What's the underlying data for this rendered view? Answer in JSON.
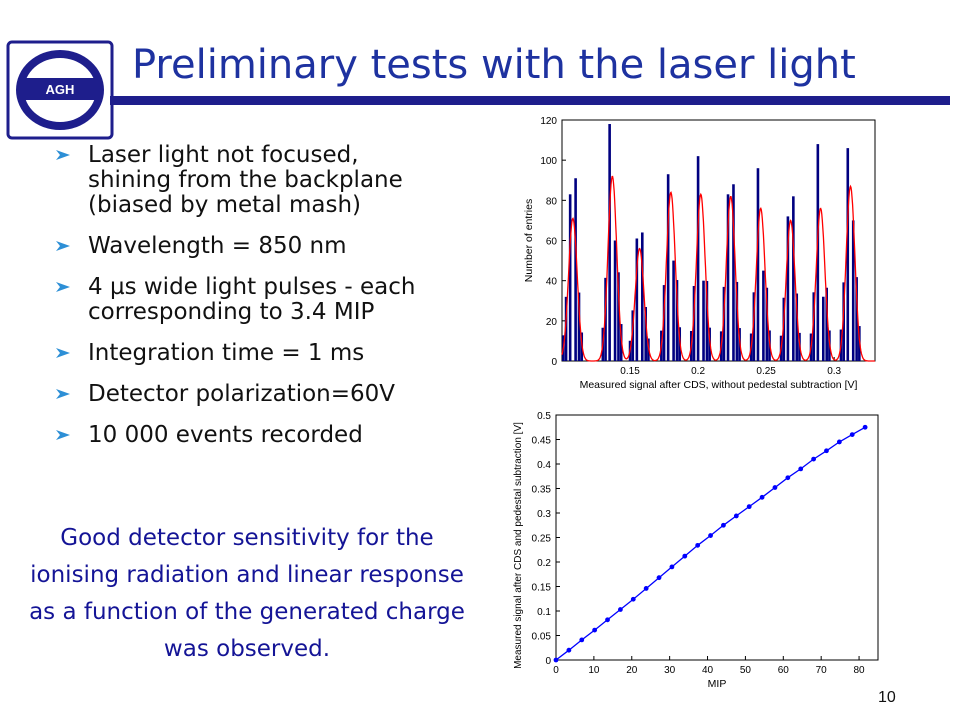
{
  "slide": {
    "title": "Preliminary tests with the laser light",
    "logo_text": "AGH",
    "page_number": "10",
    "bullets": [
      "Laser light not focused,\nshining from the backplane\n(biased by metal mash)",
      "Wavelength = 850 nm",
      "4 µs wide light pulses - each\ncorresponding to 3.4 MIP",
      "Integration time = 1 ms",
      "Detector polarization=60V",
      "10 000 events recorded"
    ],
    "conclusion": "Good detector sensitivity for the ionising radiation and linear response as a function of the generated charge was observed.",
    "colors": {
      "title": "#1e32a0",
      "accent_bar": "#1e1e8c",
      "bullet_arrow": "#2d8fd6",
      "conclusion": "#141496"
    }
  },
  "chart_data": [
    {
      "type": "bar",
      "xlabel": "Measured signal after CDS, without pedestal subtraction [V]",
      "ylabel": "Number of entries",
      "ylim": [
        0,
        120
      ],
      "xlim": [
        0.1,
        0.33
      ],
      "xticks": [
        "0.15",
        "0.2",
        "0.25",
        "0.3"
      ],
      "yticks": [
        "0",
        "20",
        "40",
        "60",
        "80",
        "100",
        "120"
      ],
      "bar_color": "#000080",
      "fit_color": "#ff0000",
      "peaks": [
        {
          "x": 0.108,
          "bins": [
            [
              0.106,
              83
            ],
            [
              0.11,
              91
            ]
          ],
          "fit_height": 71
        },
        {
          "x": 0.137,
          "bins": [
            [
              0.135,
              118
            ],
            [
              0.139,
              60
            ]
          ],
          "fit_height": 92
        },
        {
          "x": 0.157,
          "bins": [
            [
              0.155,
              61
            ],
            [
              0.159,
              64
            ]
          ],
          "fit_height": 56
        },
        {
          "x": 0.18,
          "bins": [
            [
              0.178,
              93
            ],
            [
              0.182,
              50
            ]
          ],
          "fit_height": 84
        },
        {
          "x": 0.202,
          "bins": [
            [
              0.2,
              102
            ],
            [
              0.204,
              40
            ]
          ],
          "fit_height": 83
        },
        {
          "x": 0.224,
          "bins": [
            [
              0.222,
              83
            ],
            [
              0.226,
              88
            ]
          ],
          "fit_height": 82
        },
        {
          "x": 0.246,
          "bins": [
            [
              0.244,
              96
            ],
            [
              0.248,
              45
            ]
          ],
          "fit_height": 76
        },
        {
          "x": 0.268,
          "bins": [
            [
              0.266,
              72
            ],
            [
              0.27,
              82
            ]
          ],
          "fit_height": 70
        },
        {
          "x": 0.29,
          "bins": [
            [
              0.288,
              108
            ],
            [
              0.292,
              32
            ]
          ],
          "fit_height": 76
        },
        {
          "x": 0.312,
          "bins": [
            [
              0.31,
              106
            ],
            [
              0.314,
              70
            ]
          ],
          "fit_height": 87
        }
      ]
    },
    {
      "type": "line",
      "xlabel": "MIP",
      "ylabel": "Measured signal after CDS and pedestal subtraction [V]",
      "xlim": [
        0,
        85
      ],
      "ylim": [
        0,
        0.5
      ],
      "xticks": [
        "0",
        "10",
        "20",
        "30",
        "40",
        "50",
        "60",
        "70",
        "80"
      ],
      "yticks": [
        "0",
        "0.05",
        "0.1",
        "0.15",
        "0.2",
        "0.25",
        "0.3",
        "0.35",
        "0.4",
        "0.45",
        "0.5"
      ],
      "line_color": "#0000ff",
      "x": [
        0,
        3.4,
        6.8,
        10.2,
        13.6,
        17,
        20.4,
        23.8,
        27.2,
        30.6,
        34,
        37.4,
        40.8,
        44.2,
        47.6,
        51,
        54.4,
        57.8,
        61.2,
        64.6,
        68,
        71.4,
        74.8,
        78.2,
        81.6
      ],
      "y": [
        0.0,
        0.02,
        0.041,
        0.061,
        0.082,
        0.103,
        0.124,
        0.146,
        0.168,
        0.19,
        0.212,
        0.234,
        0.254,
        0.275,
        0.294,
        0.313,
        0.332,
        0.352,
        0.372,
        0.39,
        0.41,
        0.427,
        0.445,
        0.46,
        0.475
      ]
    }
  ]
}
